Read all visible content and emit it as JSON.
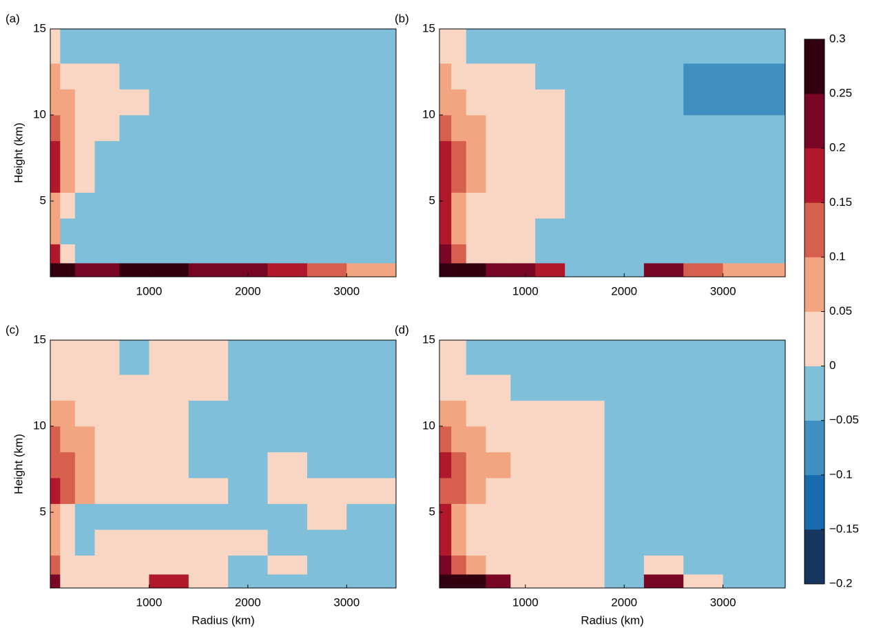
{
  "chart_data": [
    {
      "type": "heatmap",
      "panel_label": "(a)",
      "ylabel": "Height (km)",
      "xlim": [
        0,
        3500
      ],
      "ylim": [
        0.6,
        15
      ],
      "xticks": [
        1000,
        2000,
        3000
      ],
      "yticks": [
        5,
        10,
        15
      ],
      "xedges": [
        0,
        100,
        250,
        450,
        700,
        1000,
        1400,
        1800,
        2200,
        2600,
        3000,
        3500
      ],
      "yedges": [
        0.6,
        1.4,
        2.5,
        4,
        5.5,
        7,
        8.5,
        10,
        11.5,
        13,
        15
      ],
      "z": [
        [
          0.275,
          0.275,
          0.225,
          0.225,
          0.275,
          0.275,
          0.225,
          0.225,
          0.175,
          0.125,
          0.075
        ],
        [
          0.175,
          0.025,
          -0.025,
          -0.025,
          -0.025,
          -0.025,
          -0.025,
          -0.025,
          -0.025,
          -0.025,
          -0.025
        ],
        [
          0.075,
          -0.025,
          -0.025,
          -0.025,
          -0.025,
          -0.025,
          -0.025,
          -0.025,
          -0.025,
          -0.025,
          -0.025
        ],
        [
          0.075,
          0.025,
          -0.025,
          -0.025,
          -0.025,
          -0.025,
          -0.025,
          -0.025,
          -0.025,
          -0.025,
          -0.025
        ],
        [
          0.175,
          0.075,
          0.025,
          -0.025,
          -0.025,
          -0.025,
          -0.025,
          -0.025,
          -0.025,
          -0.025,
          -0.025
        ],
        [
          0.175,
          0.075,
          0.025,
          -0.025,
          -0.025,
          -0.025,
          -0.025,
          -0.025,
          -0.025,
          -0.025,
          -0.025
        ],
        [
          0.125,
          0.075,
          0.025,
          0.025,
          -0.025,
          -0.025,
          -0.025,
          -0.025,
          -0.025,
          -0.025,
          -0.025
        ],
        [
          0.075,
          0.075,
          0.025,
          0.025,
          0.025,
          -0.025,
          -0.025,
          -0.025,
          -0.025,
          -0.025,
          -0.025
        ],
        [
          0.075,
          0.025,
          0.025,
          0.025,
          -0.025,
          -0.025,
          -0.025,
          -0.025,
          -0.025,
          -0.025,
          -0.025
        ],
        [
          0.025,
          -0.025,
          -0.025,
          -0.025,
          -0.025,
          -0.025,
          -0.025,
          -0.025,
          -0.025,
          -0.025,
          -0.025
        ]
      ]
    },
    {
      "type": "heatmap",
      "panel_label": "(b)",
      "xlim": [
        130,
        3630
      ],
      "ylim": [
        0.6,
        15
      ],
      "xticks": [
        1000,
        2000,
        3000
      ],
      "yticks": [
        5,
        10,
        15
      ],
      "xedges": [
        130,
        250,
        400,
        600,
        850,
        1100,
        1400,
        1800,
        2200,
        2600,
        3000,
        3630
      ],
      "yedges": [
        0.6,
        1.4,
        2.5,
        4,
        5.5,
        7,
        8.5,
        10,
        11.5,
        13,
        15
      ],
      "z": [
        [
          0.275,
          0.275,
          0.275,
          0.225,
          0.225,
          0.175,
          -0.025,
          -0.025,
          0.225,
          0.125,
          0.075
        ],
        [
          0.225,
          0.125,
          0.025,
          0.025,
          0.025,
          -0.025,
          -0.025,
          -0.025,
          -0.025,
          -0.025,
          -0.025
        ],
        [
          0.175,
          0.075,
          0.025,
          0.025,
          0.025,
          -0.025,
          -0.025,
          -0.025,
          -0.025,
          -0.025,
          -0.025
        ],
        [
          0.175,
          0.075,
          0.025,
          0.025,
          0.025,
          0.025,
          -0.025,
          -0.025,
          -0.025,
          -0.025,
          -0.025
        ],
        [
          0.175,
          0.125,
          0.075,
          0.025,
          0.025,
          0.025,
          -0.025,
          -0.025,
          -0.025,
          -0.025,
          -0.025
        ],
        [
          0.175,
          0.125,
          0.075,
          0.025,
          0.025,
          0.025,
          -0.025,
          -0.025,
          -0.025,
          -0.025,
          -0.025
        ],
        [
          0.125,
          0.075,
          0.075,
          0.025,
          0.025,
          0.025,
          -0.025,
          -0.025,
          -0.025,
          -0.025,
          -0.025
        ],
        [
          0.075,
          0.075,
          0.025,
          0.025,
          0.025,
          0.025,
          -0.025,
          -0.025,
          -0.025,
          -0.075,
          -0.075
        ],
        [
          0.075,
          0.025,
          0.025,
          0.025,
          0.025,
          -0.025,
          -0.025,
          -0.025,
          -0.025,
          -0.075,
          -0.075
        ],
        [
          0.025,
          0.025,
          -0.025,
          -0.025,
          -0.025,
          -0.025,
          -0.025,
          -0.025,
          -0.025,
          -0.025,
          -0.025
        ]
      ]
    },
    {
      "type": "heatmap",
      "panel_label": "(c)",
      "ylabel": "Height (km)",
      "xlabel": "Radius (km)",
      "xlim": [
        0,
        3500
      ],
      "ylim": [
        0.6,
        15
      ],
      "xticks": [
        1000,
        2000,
        3000
      ],
      "yticks": [
        5,
        10,
        15
      ],
      "xedges": [
        0,
        100,
        250,
        450,
        700,
        1000,
        1400,
        1800,
        2200,
        2600,
        3000,
        3500
      ],
      "yedges": [
        0.6,
        1.4,
        2.5,
        4,
        5.5,
        7,
        8.5,
        10,
        11.5,
        13,
        15
      ],
      "z": [
        [
          0.225,
          0.025,
          0.025,
          0.025,
          0.025,
          0.175,
          0.025,
          -0.025,
          -0.025,
          -0.025,
          -0.025
        ],
        [
          0.125,
          0.025,
          0.025,
          0.025,
          0.025,
          0.025,
          0.025,
          -0.025,
          0.025,
          -0.025,
          -0.025
        ],
        [
          0.075,
          0.025,
          -0.025,
          0.025,
          0.025,
          0.025,
          0.025,
          0.025,
          -0.025,
          -0.025,
          -0.025
        ],
        [
          0.075,
          0.025,
          -0.025,
          -0.025,
          -0.025,
          -0.025,
          -0.025,
          -0.025,
          -0.025,
          0.025,
          -0.025
        ],
        [
          0.175,
          0.125,
          0.075,
          0.025,
          0.025,
          0.025,
          0.025,
          -0.025,
          0.025,
          0.025,
          0.025
        ],
        [
          0.125,
          0.125,
          0.075,
          0.025,
          0.025,
          0.025,
          -0.025,
          -0.025,
          0.025,
          -0.025,
          -0.025
        ],
        [
          0.125,
          0.075,
          0.075,
          0.025,
          0.025,
          0.025,
          -0.025,
          -0.025,
          -0.025,
          -0.025,
          -0.025
        ],
        [
          0.075,
          0.075,
          0.025,
          0.025,
          0.025,
          0.025,
          -0.025,
          -0.025,
          -0.025,
          -0.025,
          -0.025
        ],
        [
          0.025,
          0.025,
          0.025,
          0.025,
          0.025,
          0.025,
          0.025,
          -0.025,
          -0.025,
          -0.025,
          -0.025
        ],
        [
          0.025,
          0.025,
          0.025,
          0.025,
          -0.025,
          0.025,
          0.025,
          -0.025,
          -0.025,
          -0.025,
          -0.025
        ]
      ]
    },
    {
      "type": "heatmap",
      "panel_label": "(d)",
      "xlabel": "Radius (km)",
      "xlim": [
        130,
        3630
      ],
      "ylim": [
        0.6,
        15
      ],
      "xticks": [
        1000,
        2000,
        3000
      ],
      "yticks": [
        5,
        10,
        15
      ],
      "xedges": [
        130,
        250,
        400,
        600,
        850,
        1100,
        1400,
        1800,
        2200,
        2600,
        3000,
        3630
      ],
      "yedges": [
        0.6,
        1.4,
        2.5,
        4,
        5.5,
        7,
        8.5,
        10,
        11.5,
        13,
        15
      ],
      "z": [
        [
          0.275,
          0.275,
          0.275,
          0.225,
          0.025,
          0.025,
          0.025,
          -0.025,
          0.225,
          0.025,
          -0.025
        ],
        [
          0.225,
          0.125,
          0.075,
          0.025,
          0.025,
          0.025,
          0.025,
          -0.025,
          0.025,
          -0.025,
          -0.025
        ],
        [
          0.175,
          0.075,
          0.025,
          0.025,
          0.025,
          0.025,
          0.025,
          -0.025,
          -0.025,
          -0.025,
          -0.025
        ],
        [
          0.175,
          0.075,
          0.025,
          0.025,
          0.025,
          0.025,
          0.025,
          -0.025,
          -0.025,
          -0.025,
          -0.025
        ],
        [
          0.125,
          0.125,
          0.075,
          0.025,
          0.025,
          0.025,
          0.025,
          -0.025,
          -0.025,
          -0.025,
          -0.025
        ],
        [
          0.175,
          0.125,
          0.075,
          0.075,
          0.025,
          0.025,
          0.025,
          -0.025,
          -0.025,
          -0.025,
          -0.025
        ],
        [
          0.125,
          0.075,
          0.075,
          0.025,
          0.025,
          0.025,
          0.025,
          -0.025,
          -0.025,
          -0.025,
          -0.025
        ],
        [
          0.075,
          0.075,
          0.025,
          0.025,
          0.025,
          0.025,
          0.025,
          -0.025,
          -0.025,
          -0.025,
          -0.025
        ],
        [
          0.025,
          0.025,
          0.025,
          0.025,
          -0.025,
          -0.025,
          -0.025,
          -0.025,
          -0.025,
          -0.025,
          -0.025
        ],
        [
          0.025,
          0.025,
          -0.025,
          -0.025,
          -0.025,
          -0.025,
          -0.025,
          -0.025,
          -0.025,
          -0.025,
          -0.025
        ]
      ]
    }
  ],
  "colorbar": {
    "levels": [
      {
        "value": -0.2,
        "label": "−0.2"
      },
      {
        "value": -0.15,
        "label": "−0.15"
      },
      {
        "value": -0.1,
        "label": "−0.1"
      },
      {
        "value": -0.05,
        "label": "−0.05"
      },
      0,
      0.05,
      0.1,
      0.15,
      0.2,
      0.25,
      0.3
    ],
    "colors": [
      "#17365f",
      "#1a6aae",
      "#3f8fc0",
      "#80bfd9",
      "#f9d6c4",
      "#f3a481",
      "#d6604d",
      "#b2182b",
      "#7a0625",
      "#330010"
    ]
  }
}
